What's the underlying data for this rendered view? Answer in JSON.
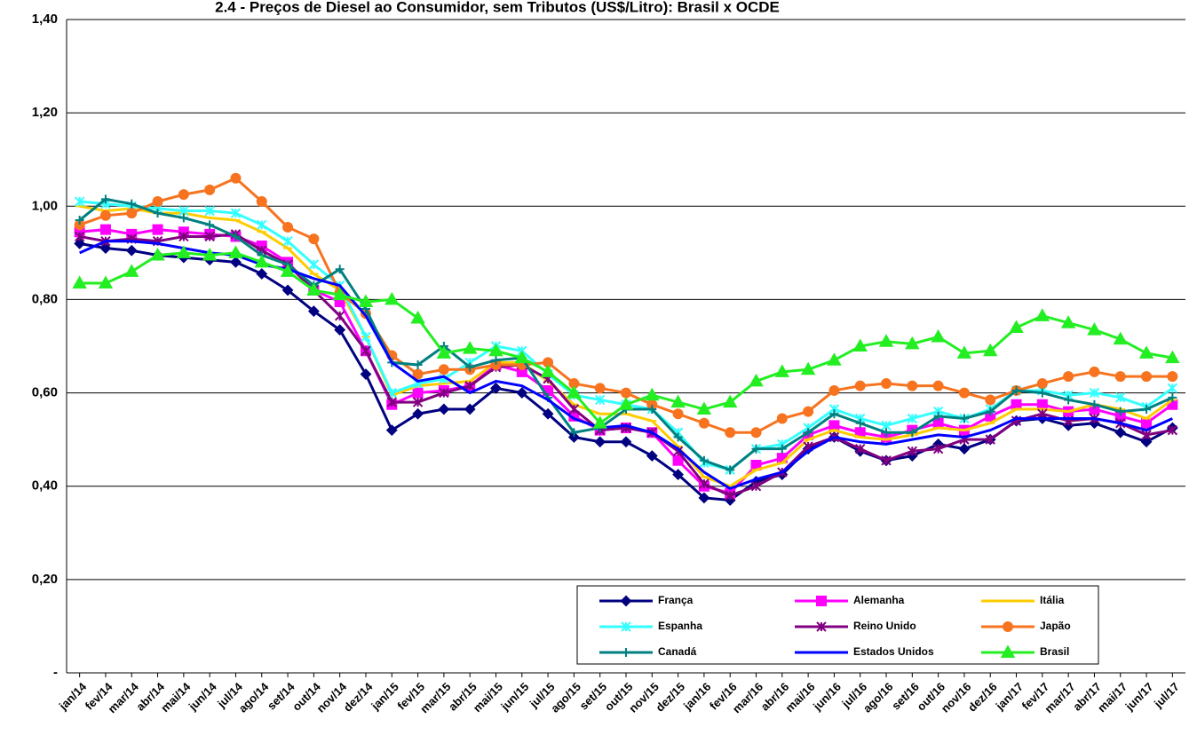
{
  "chart_data": {
    "type": "line",
    "title": "2.4 - Preços de Diesel ao Consumidor, sem Tributos (US$/Litro): Brasil x OCDE",
    "categories": [
      "jan/14",
      "fev/14",
      "mar/14",
      "abr/14",
      "mai/14",
      "jun/14",
      "jul/14",
      "ago/14",
      "set/14",
      "out/14",
      "nov/14",
      "dez/14",
      "jan/15",
      "fev/15",
      "mar/15",
      "abr/15",
      "mai/15",
      "jun/15",
      "jul/15",
      "ago/15",
      "set/15",
      "out/15",
      "nov/15",
      "dez/15",
      "jan/16",
      "fev/16",
      "mar/16",
      "abr/16",
      "mai/16",
      "jun/16",
      "jul/16",
      "ago/16",
      "set/16",
      "out/16",
      "nov/16",
      "dez/16",
      "jan/17",
      "fev/17",
      "mar/17",
      "abr/17",
      "mai/17",
      "jun/17",
      "jul/17"
    ],
    "ylim": [
      0,
      1.4
    ],
    "yticks": [
      {
        "value": 0,
        "label": "-"
      },
      {
        "value": 0.2,
        "label": "0,20"
      },
      {
        "value": 0.4,
        "label": "0,40"
      },
      {
        "value": 0.6,
        "label": "0,60"
      },
      {
        "value": 0.8,
        "label": "0,80"
      },
      {
        "value": 1.0,
        "label": "1,00"
      },
      {
        "value": 1.2,
        "label": "1,20"
      },
      {
        "value": 1.4,
        "label": "1,40"
      }
    ],
    "grid": true,
    "legend": "bottom-right",
    "series": [
      {
        "name": "França",
        "color": "#000080",
        "marker": "diamond",
        "values": [
          0.92,
          0.91,
          0.905,
          0.895,
          0.89,
          0.885,
          0.88,
          0.855,
          0.82,
          0.775,
          0.735,
          0.64,
          0.52,
          0.555,
          0.565,
          0.565,
          0.61,
          0.6,
          0.555,
          0.505,
          0.495,
          0.495,
          0.465,
          0.425,
          0.375,
          0.37,
          0.41,
          0.425,
          0.48,
          0.505,
          0.475,
          0.455,
          0.465,
          0.49,
          0.48,
          0.5,
          0.54,
          0.545,
          0.53,
          0.535,
          0.515,
          0.495,
          0.525
        ]
      },
      {
        "name": "Alemanha",
        "color": "#ff00ff",
        "marker": "square",
        "values": [
          0.945,
          0.95,
          0.94,
          0.95,
          0.945,
          0.94,
          0.935,
          0.915,
          0.88,
          0.82,
          0.795,
          0.69,
          0.575,
          0.6,
          0.605,
          0.615,
          0.66,
          0.645,
          0.605,
          0.55,
          0.52,
          0.525,
          0.515,
          0.455,
          0.4,
          0.385,
          0.445,
          0.46,
          0.51,
          0.53,
          0.515,
          0.505,
          0.52,
          0.535,
          0.52,
          0.55,
          0.575,
          0.575,
          0.56,
          0.565,
          0.55,
          0.535,
          0.575
        ]
      },
      {
        "name": "Itália",
        "color": "#ffcc00",
        "marker": "dash",
        "values": [
          1.0,
          0.99,
          0.995,
          0.985,
          0.985,
          0.975,
          0.97,
          0.945,
          0.91,
          0.855,
          0.82,
          0.72,
          0.595,
          0.615,
          0.62,
          0.625,
          0.665,
          0.665,
          0.625,
          0.575,
          0.555,
          0.555,
          0.54,
          0.485,
          0.42,
          0.4,
          0.435,
          0.45,
          0.5,
          0.52,
          0.505,
          0.5,
          0.51,
          0.525,
          0.52,
          0.535,
          0.565,
          0.565,
          0.56,
          0.575,
          0.565,
          0.545,
          0.585
        ]
      },
      {
        "name": "Espanha",
        "color": "#33ffff",
        "marker": "star",
        "values": [
          1.01,
          1.005,
          1.0,
          0.995,
          0.99,
          0.99,
          0.985,
          0.96,
          0.925,
          0.875,
          0.83,
          0.72,
          0.6,
          0.62,
          0.63,
          0.665,
          0.7,
          0.69,
          0.64,
          0.595,
          0.585,
          0.575,
          0.565,
          0.515,
          0.45,
          0.435,
          0.48,
          0.49,
          0.525,
          0.565,
          0.545,
          0.53,
          0.545,
          0.56,
          0.545,
          0.565,
          0.605,
          0.605,
          0.595,
          0.6,
          0.59,
          0.57,
          0.61
        ]
      },
      {
        "name": "Reino Unido",
        "color": "#800080",
        "marker": "star",
        "values": [
          0.935,
          0.925,
          0.93,
          0.925,
          0.935,
          0.935,
          0.94,
          0.905,
          0.875,
          0.82,
          0.765,
          0.69,
          0.58,
          0.58,
          0.6,
          0.615,
          0.655,
          0.66,
          0.63,
          0.565,
          0.52,
          0.525,
          0.515,
          0.475,
          0.405,
          0.38,
          0.4,
          0.43,
          0.485,
          0.505,
          0.48,
          0.455,
          0.475,
          0.48,
          0.5,
          0.5,
          0.54,
          0.555,
          0.54,
          0.545,
          0.535,
          0.51,
          0.52
        ]
      },
      {
        "name": "Japão",
        "color": "#f7731f",
        "marker": "circle",
        "values": [
          0.96,
          0.98,
          0.985,
          1.01,
          1.025,
          1.035,
          1.06,
          1.01,
          0.955,
          0.93,
          0.815,
          0.77,
          0.68,
          0.64,
          0.65,
          0.65,
          0.66,
          0.66,
          0.665,
          0.62,
          0.61,
          0.6,
          0.575,
          0.555,
          0.535,
          0.515,
          0.515,
          0.545,
          0.56,
          0.605,
          0.615,
          0.62,
          0.615,
          0.615,
          0.6,
          0.585,
          0.605,
          0.62,
          0.635,
          0.645,
          0.635,
          0.635,
          0.635
        ]
      },
      {
        "name": "Canadá",
        "color": "#008080",
        "marker": "plus",
        "values": [
          0.97,
          1.015,
          1.005,
          0.985,
          0.975,
          0.96,
          0.935,
          0.895,
          0.875,
          0.83,
          0.865,
          0.78,
          0.665,
          0.66,
          0.7,
          0.655,
          0.67,
          0.675,
          0.59,
          0.515,
          0.525,
          0.565,
          0.565,
          0.505,
          0.455,
          0.435,
          0.48,
          0.48,
          0.515,
          0.555,
          0.535,
          0.515,
          0.515,
          0.55,
          0.545,
          0.56,
          0.605,
          0.6,
          0.585,
          0.575,
          0.56,
          0.565,
          0.59
        ]
      },
      {
        "name": "Estados Unidos",
        "color": "#0000ff",
        "marker": "none",
        "values": [
          0.9,
          0.925,
          0.925,
          0.92,
          0.91,
          0.9,
          0.895,
          0.875,
          0.865,
          0.845,
          0.83,
          0.765,
          0.665,
          0.625,
          0.635,
          0.6,
          0.625,
          0.615,
          0.585,
          0.545,
          0.525,
          0.53,
          0.515,
          0.48,
          0.43,
          0.395,
          0.415,
          0.43,
          0.475,
          0.505,
          0.495,
          0.49,
          0.5,
          0.51,
          0.505,
          0.52,
          0.545,
          0.545,
          0.545,
          0.545,
          0.535,
          0.52,
          0.545
        ]
      },
      {
        "name": "Brasil",
        "color": "#22ee22",
        "marker": "triangle",
        "values": [
          0.835,
          0.835,
          0.86,
          0.895,
          0.9,
          0.895,
          0.9,
          0.88,
          0.86,
          0.82,
          0.81,
          0.795,
          0.8,
          0.76,
          0.685,
          0.695,
          0.69,
          0.675,
          0.645,
          0.6,
          0.535,
          0.575,
          0.595,
          0.58,
          0.565,
          0.58,
          0.625,
          0.645,
          0.65,
          0.67,
          0.7,
          0.71,
          0.705,
          0.72,
          0.685,
          0.69,
          0.74,
          0.765,
          0.75,
          0.735,
          0.715,
          0.685,
          0.675
        ]
      }
    ]
  }
}
